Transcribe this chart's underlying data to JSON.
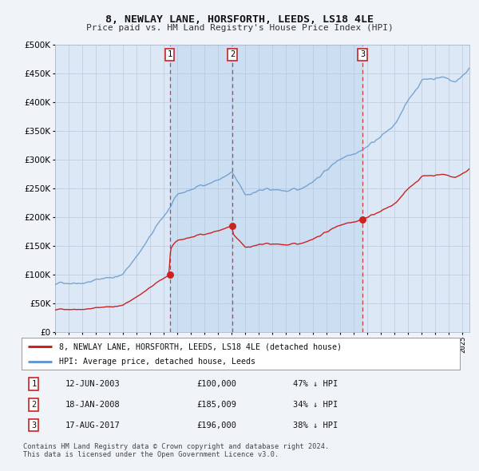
{
  "title": "8, NEWLAY LANE, HORSFORTH, LEEDS, LS18 4LE",
  "subtitle": "Price paid vs. HM Land Registry's House Price Index (HPI)",
  "bg_color": "#f0f4f8",
  "plot_bg_color": "#dce8f5",
  "shade_color": "#c8dbef",
  "grid_color": "#c8d8e8",
  "ylim": [
    0,
    500000
  ],
  "yticks": [
    0,
    50000,
    100000,
    150000,
    200000,
    250000,
    300000,
    350000,
    400000,
    450000,
    500000
  ],
  "ytick_labels": [
    "£0",
    "£50K",
    "£100K",
    "£150K",
    "£200K",
    "£250K",
    "£300K",
    "£350K",
    "£400K",
    "£450K",
    "£500K"
  ],
  "sale_dates": [
    2003.44,
    2008.05,
    2017.63
  ],
  "sale_prices": [
    100000,
    185009,
    196000
  ],
  "sale_labels": [
    "1",
    "2",
    "3"
  ],
  "sale_pct": [
    "47% ↓ HPI",
    "34% ↓ HPI",
    "38% ↓ HPI"
  ],
  "sale_date_labels": [
    "12-JUN-2003",
    "18-JAN-2008",
    "17-AUG-2017"
  ],
  "sale_prices_str": [
    "£100,000",
    "£185,009",
    "£196,000"
  ],
  "legend_red": "8, NEWLAY LANE, HORSFORTH, LEEDS, LS18 4LE (detached house)",
  "legend_blue": "HPI: Average price, detached house, Leeds",
  "footer": "Contains HM Land Registry data © Crown copyright and database right 2024.\nThis data is licensed under the Open Government Licence v3.0.",
  "xmin": 1995.0,
  "xmax": 2025.5,
  "red_color": "#cc2222",
  "blue_color": "#6699cc"
}
